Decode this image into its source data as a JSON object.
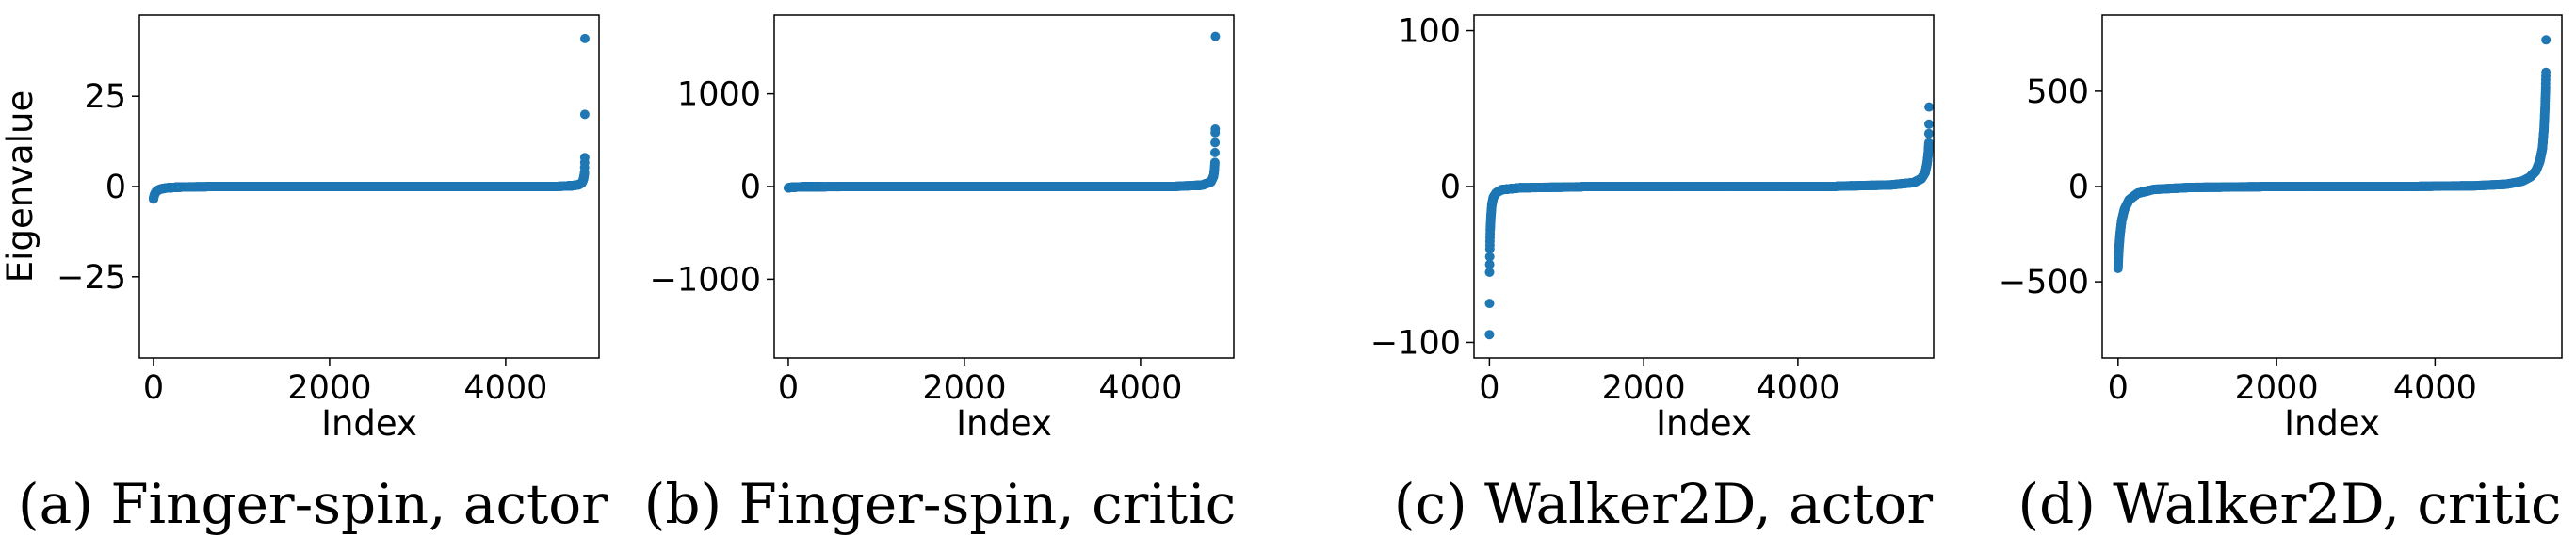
{
  "colors": {
    "points": "#1f77b4",
    "frame": "#000000"
  },
  "chart_data": [
    {
      "type": "scatter",
      "caption": "(a) Finger-spin, actor",
      "xlabel": "Index",
      "ylabel": "Eigenvalue",
      "xlim": [
        -160,
        5060
      ],
      "ylim": [
        -47.5,
        47.5
      ],
      "xticks": [
        0,
        2000,
        4000
      ],
      "xtick_labels": [
        "0",
        "2000",
        "4000"
      ],
      "yticks": [
        25,
        0,
        -25
      ],
      "ytick_labels": [
        "25",
        "0",
        "−25"
      ],
      "n_points": 4900,
      "curve": {
        "low_tail": [
          [
            0,
            -3.5
          ],
          [
            5,
            -2.8
          ],
          [
            12,
            -2.2
          ],
          [
            25,
            -1.6
          ],
          [
            45,
            -1.1
          ],
          [
            80,
            -0.7
          ],
          [
            140,
            -0.4
          ],
          [
            300,
            -0.15
          ],
          [
            600,
            -0.05
          ]
        ],
        "middle": 0,
        "high_tail": [
          [
            4600,
            0.05
          ],
          [
            4750,
            0.2
          ],
          [
            4830,
            0.5
          ],
          [
            4865,
            1.0
          ],
          [
            4880,
            1.8
          ],
          [
            4890,
            2.8
          ],
          [
            4895,
            4.0
          ],
          [
            4898,
            8.0
          ],
          [
            4899,
            20.0
          ],
          [
            4900,
            41.0
          ]
        ]
      }
    },
    {
      "type": "scatter",
      "caption": "(b) Finger-spin, critic",
      "xlabel": "Index",
      "ylabel": "",
      "xlim": [
        -160,
        5060
      ],
      "ylim": [
        -1850,
        1850
      ],
      "xticks": [
        0,
        2000,
        4000
      ],
      "xtick_labels": [
        "0",
        "2000",
        "4000"
      ],
      "yticks": [
        1000,
        0,
        -1000
      ],
      "ytick_labels": [
        "1000",
        "0",
        "−1000"
      ],
      "n_points": 4850,
      "curve": {
        "low_tail": [
          [
            0,
            -15
          ],
          [
            20,
            -10
          ],
          [
            80,
            -6
          ],
          [
            200,
            -3
          ],
          [
            600,
            -0.5
          ]
        ],
        "middle": 0,
        "high_tail": [
          [
            4400,
            2
          ],
          [
            4700,
            15
          ],
          [
            4800,
            50
          ],
          [
            4830,
            110
          ],
          [
            4840,
            180
          ],
          [
            4845,
            260
          ],
          [
            4848,
            580
          ],
          [
            4849,
            620
          ],
          [
            4850,
            1620
          ]
        ]
      }
    },
    {
      "type": "scatter",
      "caption": "(c) Walker2D, actor",
      "xlabel": "Index",
      "ylabel": "",
      "xlim": [
        -200,
        5760
      ],
      "ylim": [
        -110,
        110
      ],
      "xticks": [
        0,
        2000,
        4000
      ],
      "xtick_labels": [
        "0",
        "2000",
        "4000"
      ],
      "yticks": [
        100,
        0,
        -100
      ],
      "ytick_labels": [
        "100",
        "0",
        "−100"
      ],
      "n_points": 5700,
      "curve": {
        "low_tail": [
          [
            0,
            -95
          ],
          [
            2,
            -55
          ],
          [
            5,
            -40
          ],
          [
            10,
            -28
          ],
          [
            18,
            -20
          ],
          [
            30,
            -12
          ],
          [
            50,
            -7
          ],
          [
            90,
            -4
          ],
          [
            160,
            -2
          ],
          [
            400,
            -0.8
          ],
          [
            1200,
            -0.2
          ]
        ],
        "middle": 0,
        "high_tail": [
          [
            4500,
            0.2
          ],
          [
            5200,
            1.0
          ],
          [
            5500,
            2.5
          ],
          [
            5600,
            5.0
          ],
          [
            5650,
            9.0
          ],
          [
            5675,
            15.0
          ],
          [
            5690,
            22.0
          ],
          [
            5697,
            28.0
          ],
          [
            5699,
            40.0
          ],
          [
            5700,
            51.0
          ]
        ]
      }
    },
    {
      "type": "scatter",
      "caption": "(d) Walker2D, critic",
      "xlabel": "Index",
      "ylabel": "",
      "xlim": [
        -200,
        5600
      ],
      "ylim": [
        -900,
        900
      ],
      "xticks": [
        0,
        2000,
        4000
      ],
      "xtick_labels": [
        "0",
        "2000",
        "4000"
      ],
      "yticks": [
        500,
        0,
        -500
      ],
      "ytick_labels": [
        "500",
        "0",
        "−500"
      ],
      "n_points": 5400,
      "curve": {
        "low_tail": [
          [
            0,
            -430
          ],
          [
            5,
            -380
          ],
          [
            12,
            -320
          ],
          [
            25,
            -250
          ],
          [
            45,
            -180
          ],
          [
            80,
            -120
          ],
          [
            140,
            -70
          ],
          [
            250,
            -35
          ],
          [
            450,
            -15
          ],
          [
            900,
            -5
          ],
          [
            1800,
            -1
          ]
        ],
        "middle": 0,
        "high_tail": [
          [
            3800,
            1
          ],
          [
            4500,
            4
          ],
          [
            4900,
            12
          ],
          [
            5100,
            28
          ],
          [
            5200,
            50
          ],
          [
            5270,
            80
          ],
          [
            5320,
            130
          ],
          [
            5355,
            200
          ],
          [
            5375,
            300
          ],
          [
            5388,
            420
          ],
          [
            5395,
            520
          ],
          [
            5399,
            600
          ],
          [
            5400,
            770
          ]
        ]
      }
    }
  ]
}
